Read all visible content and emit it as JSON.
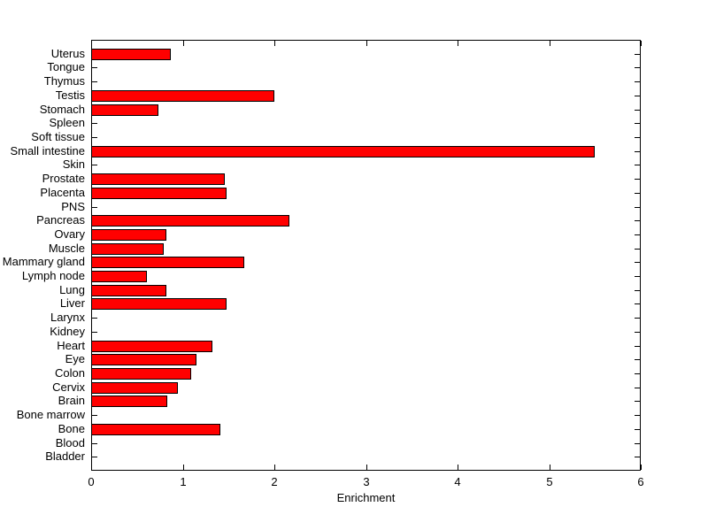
{
  "figure": {
    "background_color": "#FFFFFF",
    "axes_color": "#000000"
  },
  "chart_data": {
    "type": "bar",
    "orientation": "horizontal",
    "title": "",
    "xlabel": "Enrichment",
    "ylabel": "",
    "xlim": [
      0,
      6
    ],
    "x_ticks": [
      0,
      1,
      2,
      3,
      4,
      5,
      6
    ],
    "grid": false,
    "legend": "none",
    "bar_color": "#FF0000",
    "bar_edge_color": "#000000",
    "categories_top_to_bottom": [
      "Uterus",
      "Tongue",
      "Thymus",
      "Testis",
      "Stomach",
      "Spleen",
      "Soft tissue",
      "Small intestine",
      "Skin",
      "Prostate",
      "Placenta",
      "PNS",
      "Pancreas",
      "Ovary",
      "Muscle",
      "Mammary gland",
      "Lymph node",
      "Lung",
      "Liver",
      "Larynx",
      "Kidney",
      "Heart",
      "Eye",
      "Colon",
      "Cervix",
      "Brain",
      "Bone marrow",
      "Bone",
      "Blood",
      "Bladder"
    ],
    "values_top_to_bottom": [
      0.87,
      0,
      0,
      2.0,
      0.73,
      0,
      0,
      5.5,
      0,
      1.46,
      1.48,
      0,
      2.16,
      0.82,
      0.79,
      1.67,
      0.61,
      0.82,
      1.48,
      0,
      0,
      1.32,
      1.15,
      1.09,
      0.95,
      0.83,
      0,
      1.41,
      0,
      0
    ]
  }
}
